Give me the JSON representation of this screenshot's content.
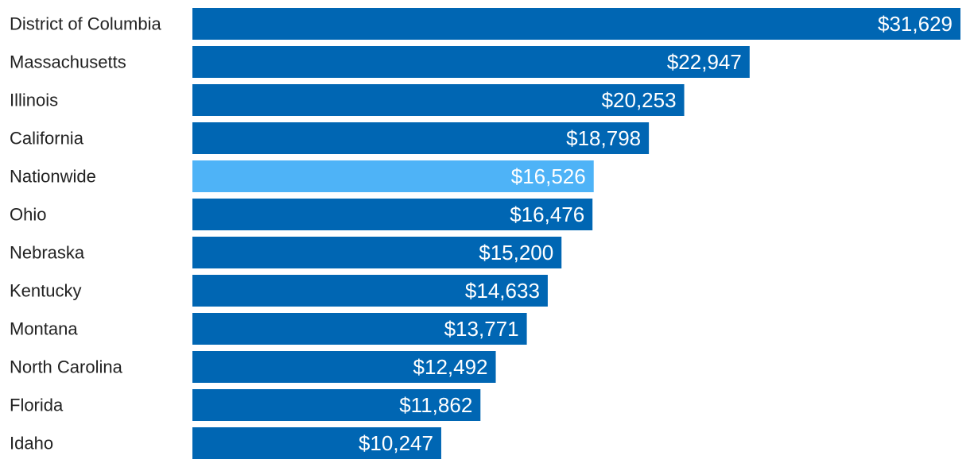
{
  "chart_data": {
    "type": "bar",
    "orientation": "horizontal",
    "title": "",
    "xlabel": "",
    "ylabel": "",
    "categories": [
      "District of Columbia",
      "Massachusetts",
      "Illinois",
      "California",
      "Nationwide",
      "Ohio",
      "Nebraska",
      "Kentucky",
      "Montana",
      "North Carolina",
      "Florida",
      "Idaho"
    ],
    "values": [
      31629,
      22947,
      20253,
      18798,
      16526,
      16476,
      15200,
      14633,
      13771,
      12492,
      11862,
      10247
    ],
    "value_labels": [
      "$31,629",
      "$22,947",
      "$20,253",
      "$18,798",
      "$16,526",
      "$16,476",
      "$15,200",
      "$14,633",
      "$13,771",
      "$12,492",
      "$11,862",
      "$10,247"
    ],
    "highlight_category": "Nationwide",
    "xlim": [
      0,
      31629
    ],
    "grid": false,
    "legend": "none",
    "colors": {
      "bar": "#0066b3",
      "highlight": "#4eb3f7",
      "label_text": "#222222",
      "value_text": "#ffffff"
    }
  }
}
